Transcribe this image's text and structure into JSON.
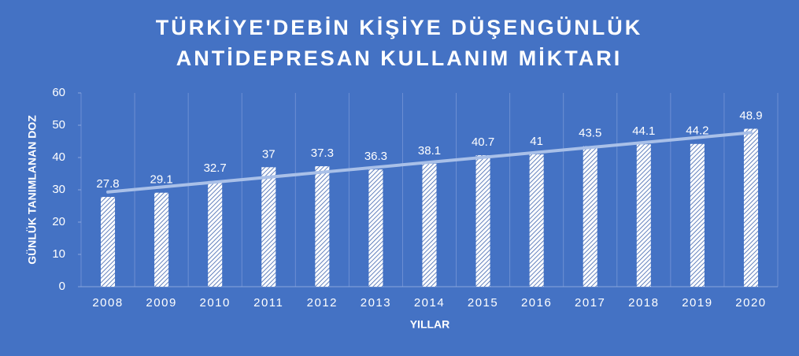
{
  "chart_data": {
    "type": "bar",
    "title": [
      "TÜRKİYE'DEBİN KİŞİYE DÜŞENGÜNLÜK",
      "ANTİDEPRESAN KULLANIM MİKTARI"
    ],
    "x_label": "YILLAR",
    "y_label": "GÜNLÜK TANIMLANAN DOZ",
    "categories": [
      "2008",
      "2009",
      "2010",
      "2011",
      "2012",
      "2013",
      "2014",
      "2015",
      "2016",
      "2017",
      "2018",
      "2019",
      "2020"
    ],
    "values": [
      27.8,
      29.1,
      32.7,
      37,
      37.3,
      36.3,
      38.1,
      40.7,
      41,
      43.5,
      44.1,
      44.2,
      48.9
    ],
    "color": "#3c62ad",
    "ylim": [
      0,
      60
    ],
    "yticks": [
      0,
      10,
      20,
      30,
      40,
      50,
      60
    ],
    "trendline": true,
    "trendline_color": "#a9c0e8",
    "grid": true
  }
}
